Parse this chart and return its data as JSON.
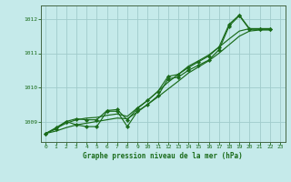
{
  "title": "Graphe pression niveau de la mer (hPa)",
  "ylim": [
    1008.4,
    1012.4
  ],
  "xlim": [
    -0.5,
    23.5
  ],
  "yticks": [
    1009,
    1010,
    1011,
    1012
  ],
  "xticks": [
    0,
    1,
    2,
    3,
    4,
    5,
    6,
    7,
    8,
    9,
    10,
    11,
    12,
    13,
    14,
    15,
    16,
    17,
    18,
    19,
    20,
    21,
    22,
    23
  ],
  "bg_color": "#c5eaea",
  "grid_color": "#a0cccc",
  "line_color": "#1a6b1a",
  "series_jagged": [
    1008.65,
    1008.78,
    1009.0,
    1008.9,
    1008.85,
    1008.85,
    1009.3,
    1009.3,
    1008.85,
    1009.3,
    1009.5,
    1009.75,
    1010.25,
    1010.3,
    1010.5,
    1010.65,
    1010.8,
    1011.1,
    1011.8,
    1012.1,
    1011.7,
    1011.7,
    1011.7
  ],
  "series_smooth_low": [
    1008.65,
    1008.72,
    1008.82,
    1008.9,
    1008.95,
    1009.0,
    1009.05,
    1009.1,
    1009.08,
    1009.28,
    1009.5,
    1009.72,
    1009.95,
    1010.18,
    1010.42,
    1010.6,
    1010.78,
    1011.0,
    1011.25,
    1011.5,
    1011.65,
    1011.68,
    1011.68
  ],
  "series_smooth_high": [
    1008.65,
    1008.8,
    1008.95,
    1009.05,
    1009.1,
    1009.12,
    1009.18,
    1009.22,
    1009.15,
    1009.4,
    1009.62,
    1009.88,
    1010.15,
    1010.38,
    1010.62,
    1010.78,
    1010.95,
    1011.18,
    1011.42,
    1011.65,
    1011.72,
    1011.72,
    1011.72
  ],
  "series_upper": [
    1008.65,
    1008.82,
    1009.0,
    1009.08,
    1009.05,
    1009.05,
    1009.32,
    1009.35,
    1009.05,
    1009.38,
    1009.62,
    1009.88,
    1010.32,
    1010.38,
    1010.58,
    1010.75,
    1010.92,
    1011.18,
    1011.85,
    1012.12,
    1011.72,
    1011.72,
    1011.72
  ]
}
